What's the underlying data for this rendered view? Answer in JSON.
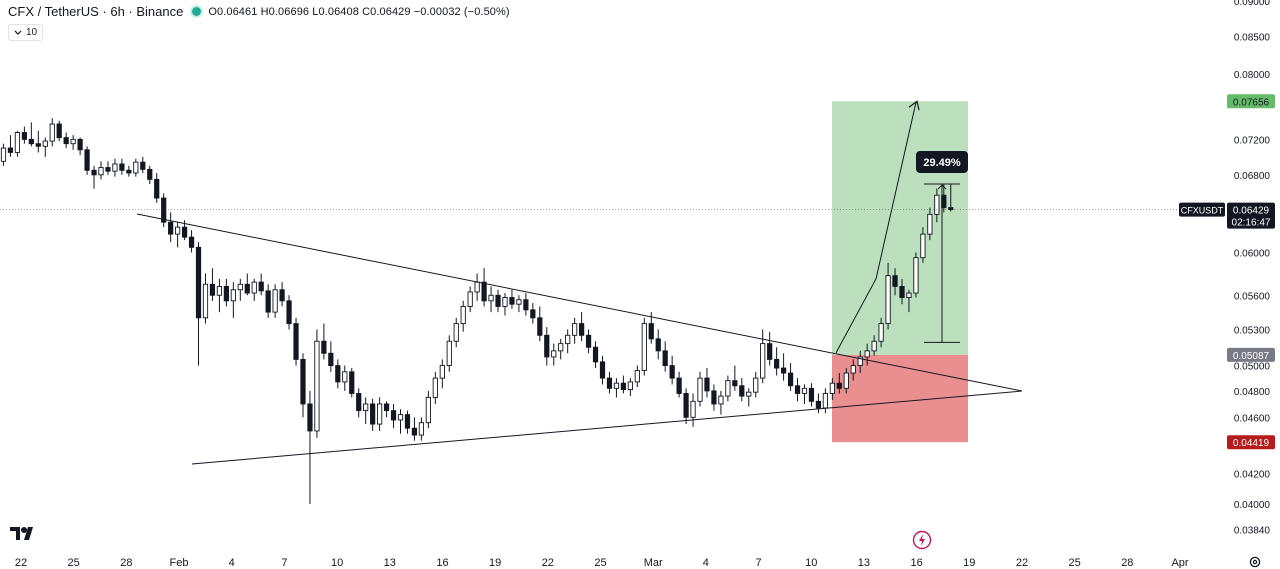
{
  "header": {
    "symbol_title": "CFX / TetherUS · 6h · Binance",
    "ohlc": "O0.06461 H0.06696 L0.06408 C0.06429 −0.00032 (−0.50%)",
    "indicator_label": "10",
    "status_color": "#22ab94"
  },
  "chart_data": {
    "type": "candlestick",
    "symbol": "CFXUSDT",
    "price_axis": {
      "range": [
        0.0375,
        0.09
      ],
      "scale": "log",
      "ticks": [
        "0.09000",
        "0.08500",
        "0.08000",
        "0.07200",
        "0.06800",
        "0.06000",
        "0.05600",
        "0.05300",
        "0.05000",
        "0.04800",
        "0.04600",
        "0.04200",
        "0.04000",
        "0.03840"
      ]
    },
    "time_axis": {
      "labels": [
        "22",
        "25",
        "28",
        "Feb",
        "4",
        "7",
        "10",
        "13",
        "16",
        "19",
        "22",
        "25",
        "Mar",
        "4",
        "7",
        "10",
        "13",
        "16",
        "19",
        "22",
        "25",
        "28",
        "Apr"
      ]
    },
    "price_labels": [
      {
        "name": "target",
        "text": "0.07656",
        "value": 0.07656,
        "bg": "#66bb6a",
        "fg": "#131722"
      },
      {
        "name": "last-price",
        "text": "0.06429",
        "value": 0.06429,
        "bg": "#131722",
        "fg": "#ffffff",
        "countdown": "02:16:47",
        "symbol_tag": "CFXUSDT"
      },
      {
        "name": "entry",
        "text": "0.05087",
        "value": 0.05087,
        "bg": "#787b86",
        "fg": "#ffffff"
      },
      {
        "name": "stop",
        "text": "0.04419",
        "value": 0.04419,
        "bg": "#b71c1c",
        "fg": "#ffffff"
      }
    ],
    "position_tool": {
      "type": "long",
      "entry": 0.05087,
      "target": 0.07656,
      "stop": 0.04419,
      "profit_color": "#a5d6a7",
      "loss_color": "#e57373"
    },
    "measure_label": "29.49%",
    "candle_color": "#131722",
    "candles": [
      [
        0.0695,
        0.0715,
        0.069,
        0.071
      ],
      [
        0.071,
        0.0725,
        0.07,
        0.0705
      ],
      [
        0.0705,
        0.073,
        0.07,
        0.0728
      ],
      [
        0.0728,
        0.0735,
        0.0715,
        0.072
      ],
      [
        0.072,
        0.074,
        0.0712,
        0.0715
      ],
      [
        0.0715,
        0.073,
        0.0705,
        0.0712
      ],
      [
        0.0712,
        0.0722,
        0.07,
        0.0718
      ],
      [
        0.0718,
        0.0745,
        0.0712,
        0.0738
      ],
      [
        0.0738,
        0.0742,
        0.0718,
        0.0722
      ],
      [
        0.0722,
        0.0728,
        0.071,
        0.0715
      ],
      [
        0.0715,
        0.0725,
        0.0708,
        0.072
      ],
      [
        0.072,
        0.0722,
        0.0702,
        0.0708
      ],
      [
        0.0708,
        0.0712,
        0.068,
        0.0685
      ],
      [
        0.0685,
        0.069,
        0.0665,
        0.068
      ],
      [
        0.068,
        0.0695,
        0.0675,
        0.0688
      ],
      [
        0.0688,
        0.0695,
        0.068,
        0.0684
      ],
      [
        0.0684,
        0.0698,
        0.0678,
        0.0692
      ],
      [
        0.0692,
        0.0698,
        0.068,
        0.0685
      ],
      [
        0.0685,
        0.069,
        0.0678,
        0.0682
      ],
      [
        0.0682,
        0.0698,
        0.0678,
        0.0694
      ],
      [
        0.0694,
        0.07,
        0.0682,
        0.0686
      ],
      [
        0.0686,
        0.069,
        0.067,
        0.0675
      ],
      [
        0.0675,
        0.0682,
        0.065,
        0.0655
      ],
      [
        0.0655,
        0.066,
        0.0625,
        0.063
      ],
      [
        0.063,
        0.064,
        0.061,
        0.0618
      ],
      [
        0.0618,
        0.063,
        0.0605,
        0.0625
      ],
      [
        0.0625,
        0.0632,
        0.0612,
        0.0615
      ],
      [
        0.0615,
        0.0622,
        0.06,
        0.0605
      ],
      [
        0.0605,
        0.061,
        0.05,
        0.054
      ],
      [
        0.054,
        0.058,
        0.0535,
        0.057
      ],
      [
        0.057,
        0.0585,
        0.0555,
        0.056
      ],
      [
        0.056,
        0.0575,
        0.0545,
        0.0568
      ],
      [
        0.0568,
        0.0575,
        0.055,
        0.0555
      ],
      [
        0.0555,
        0.0572,
        0.054,
        0.0565
      ],
      [
        0.0565,
        0.0575,
        0.0555,
        0.057
      ],
      [
        0.057,
        0.058,
        0.056,
        0.0562
      ],
      [
        0.0562,
        0.0575,
        0.0555,
        0.0572
      ],
      [
        0.0572,
        0.058,
        0.056,
        0.0564
      ],
      [
        0.0564,
        0.057,
        0.054,
        0.0545
      ],
      [
        0.0545,
        0.057,
        0.054,
        0.0565
      ],
      [
        0.0565,
        0.0572,
        0.055,
        0.0555
      ],
      [
        0.0555,
        0.056,
        0.053,
        0.0535
      ],
      [
        0.0535,
        0.054,
        0.05,
        0.0505
      ],
      [
        0.0505,
        0.051,
        0.046,
        0.047
      ],
      [
        0.047,
        0.048,
        0.04,
        0.045
      ],
      [
        0.045,
        0.053,
        0.0445,
        0.052
      ],
      [
        0.052,
        0.0535,
        0.0505,
        0.051
      ],
      [
        0.051,
        0.052,
        0.0495,
        0.05
      ],
      [
        0.05,
        0.0505,
        0.0482,
        0.0487
      ],
      [
        0.0487,
        0.05,
        0.048,
        0.0495
      ],
      [
        0.0495,
        0.0498,
        0.0475,
        0.0478
      ],
      [
        0.0478,
        0.0482,
        0.046,
        0.0465
      ],
      [
        0.0465,
        0.0475,
        0.0455,
        0.047
      ],
      [
        0.047,
        0.0474,
        0.045,
        0.0455
      ],
      [
        0.0455,
        0.0475,
        0.045,
        0.047
      ],
      [
        0.047,
        0.0472,
        0.046,
        0.0465
      ],
      [
        0.0465,
        0.047,
        0.0452,
        0.0458
      ],
      [
        0.0458,
        0.0466,
        0.0448,
        0.0462
      ],
      [
        0.0462,
        0.0465,
        0.0448,
        0.0452
      ],
      [
        0.0452,
        0.046,
        0.0443,
        0.0447
      ],
      [
        0.0447,
        0.046,
        0.0443,
        0.0456
      ],
      [
        0.0456,
        0.048,
        0.0452,
        0.0475
      ],
      [
        0.0475,
        0.0495,
        0.047,
        0.049
      ],
      [
        0.049,
        0.0505,
        0.0482,
        0.05
      ],
      [
        0.05,
        0.0525,
        0.0495,
        0.052
      ],
      [
        0.052,
        0.054,
        0.0515,
        0.0535
      ],
      [
        0.0535,
        0.0555,
        0.0528,
        0.055
      ],
      [
        0.055,
        0.0568,
        0.0545,
        0.0563
      ],
      [
        0.0563,
        0.058,
        0.0555,
        0.0572
      ],
      [
        0.0572,
        0.0585,
        0.055,
        0.0555
      ],
      [
        0.0555,
        0.0568,
        0.0545,
        0.056
      ],
      [
        0.056,
        0.0565,
        0.0545,
        0.055
      ],
      [
        0.055,
        0.0562,
        0.0542,
        0.0558
      ],
      [
        0.0558,
        0.0565,
        0.0548,
        0.0552
      ],
      [
        0.0552,
        0.056,
        0.0545,
        0.0556
      ],
      [
        0.0556,
        0.0562,
        0.0542,
        0.0547
      ],
      [
        0.0547,
        0.0553,
        0.0535,
        0.054
      ],
      [
        0.054,
        0.055,
        0.052,
        0.0525
      ],
      [
        0.0525,
        0.0532,
        0.05,
        0.0507
      ],
      [
        0.0507,
        0.0518,
        0.05,
        0.0512
      ],
      [
        0.0512,
        0.0522,
        0.0505,
        0.0518
      ],
      [
        0.0518,
        0.053,
        0.051,
        0.0525
      ],
      [
        0.0525,
        0.054,
        0.0518,
        0.0535
      ],
      [
        0.0535,
        0.0545,
        0.052,
        0.0525
      ],
      [
        0.0525,
        0.053,
        0.051,
        0.0515
      ],
      [
        0.0515,
        0.052,
        0.0498,
        0.0503
      ],
      [
        0.0503,
        0.0508,
        0.0485,
        0.049
      ],
      [
        0.049,
        0.0495,
        0.0478,
        0.0482
      ],
      [
        0.0482,
        0.049,
        0.0475,
        0.0486
      ],
      [
        0.0486,
        0.0492,
        0.0478,
        0.0481
      ],
      [
        0.0481,
        0.049,
        0.0476,
        0.0487
      ],
      [
        0.0487,
        0.05,
        0.0483,
        0.0496
      ],
      [
        0.0496,
        0.054,
        0.0492,
        0.0535
      ],
      [
        0.0535,
        0.0545,
        0.0518,
        0.0522
      ],
      [
        0.0522,
        0.053,
        0.0505,
        0.0512
      ],
      [
        0.0512,
        0.052,
        0.0495,
        0.05
      ],
      [
        0.05,
        0.0508,
        0.0485,
        0.049
      ],
      [
        0.049,
        0.0495,
        0.0475,
        0.0478
      ],
      [
        0.0478,
        0.0482,
        0.0455,
        0.046
      ],
      [
        0.046,
        0.0478,
        0.0453,
        0.0472
      ],
      [
        0.0472,
        0.0495,
        0.0468,
        0.049
      ],
      [
        0.049,
        0.0498,
        0.0475,
        0.048
      ],
      [
        0.048,
        0.0485,
        0.0465,
        0.047
      ],
      [
        0.047,
        0.048,
        0.0462,
        0.0476
      ],
      [
        0.0476,
        0.0492,
        0.0472,
        0.0488
      ],
      [
        0.0488,
        0.05,
        0.048,
        0.0484
      ],
      [
        0.0484,
        0.049,
        0.0472,
        0.0476
      ],
      [
        0.0476,
        0.0482,
        0.0468,
        0.0479
      ],
      [
        0.0479,
        0.0495,
        0.0475,
        0.049
      ],
      [
        0.049,
        0.053,
        0.0486,
        0.0518
      ],
      [
        0.0518,
        0.0528,
        0.05,
        0.0505
      ],
      [
        0.0505,
        0.0515,
        0.0492,
        0.0498
      ],
      [
        0.0498,
        0.051,
        0.0488,
        0.0494
      ],
      [
        0.0494,
        0.0502,
        0.048,
        0.0484
      ],
      [
        0.0484,
        0.049,
        0.0472,
        0.0478
      ],
      [
        0.0478,
        0.0485,
        0.047,
        0.0482
      ],
      [
        0.0482,
        0.0486,
        0.0468,
        0.0472
      ],
      [
        0.0472,
        0.0478,
        0.0463,
        0.0467
      ],
      [
        0.0467,
        0.0482,
        0.0463,
        0.0478
      ],
      [
        0.0478,
        0.049,
        0.0473,
        0.0486
      ],
      [
        0.0486,
        0.0494,
        0.0478,
        0.0482
      ],
      [
        0.0482,
        0.0498,
        0.0478,
        0.0494
      ],
      [
        0.0494,
        0.0505,
        0.0488,
        0.05
      ],
      [
        0.05,
        0.0512,
        0.0494,
        0.0507
      ],
      [
        0.0507,
        0.0518,
        0.05,
        0.0512
      ],
      [
        0.0512,
        0.0525,
        0.0508,
        0.052
      ],
      [
        0.052,
        0.054,
        0.0515,
        0.0535
      ],
      [
        0.0535,
        0.059,
        0.053,
        0.0578
      ],
      [
        0.0578,
        0.0585,
        0.056,
        0.0568
      ],
      [
        0.0568,
        0.0575,
        0.0552,
        0.0558
      ],
      [
        0.0558,
        0.0565,
        0.0545,
        0.0562
      ],
      [
        0.0562,
        0.06,
        0.0558,
        0.0595
      ],
      [
        0.0595,
        0.0625,
        0.059,
        0.0618
      ],
      [
        0.0618,
        0.0645,
        0.0612,
        0.0638
      ],
      [
        0.0638,
        0.0665,
        0.063,
        0.0658
      ],
      [
        0.0658,
        0.067,
        0.064,
        0.0645
      ],
      [
        0.0645,
        0.067,
        0.0641,
        0.0643
      ]
    ],
    "candle_slots": 173
  }
}
